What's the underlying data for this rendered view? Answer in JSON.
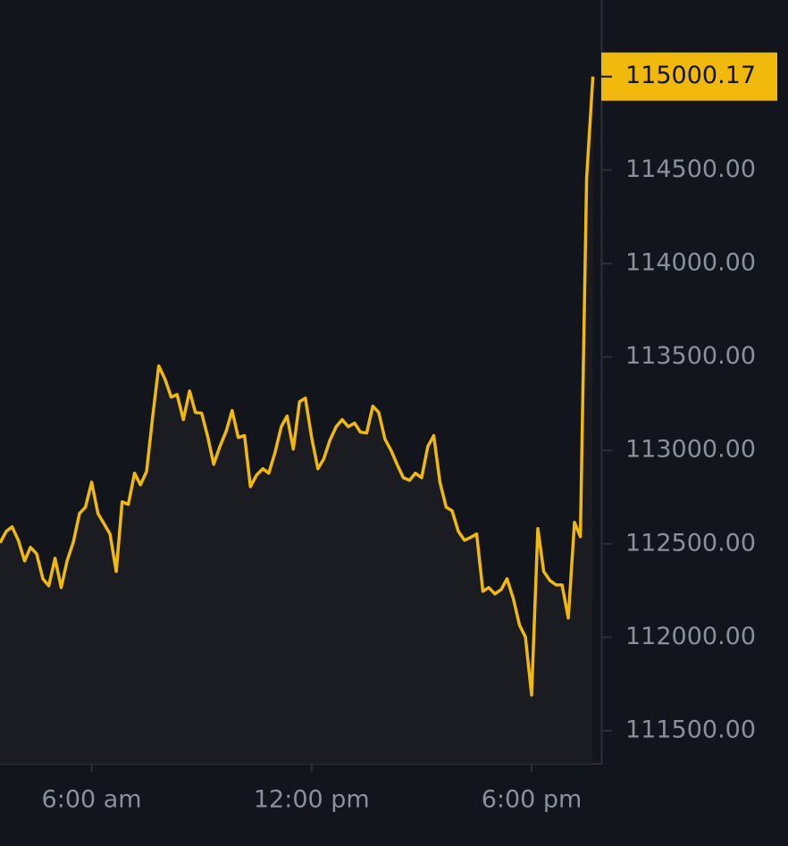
{
  "chart_data": {
    "type": "area",
    "x": [
      3.5,
      3.67,
      3.83,
      4,
      4.17,
      4.33,
      4.5,
      4.67,
      4.83,
      5,
      5.17,
      5.33,
      5.5,
      5.67,
      5.83,
      6,
      6.17,
      6.33,
      6.5,
      6.67,
      6.83,
      7,
      7.17,
      7.33,
      7.5,
      7.67,
      7.83,
      8,
      8.17,
      8.33,
      8.5,
      8.67,
      8.83,
      9,
      9.17,
      9.33,
      9.5,
      9.67,
      9.83,
      10,
      10.17,
      10.33,
      10.5,
      10.67,
      10.83,
      11,
      11.17,
      11.33,
      11.5,
      11.67,
      11.83,
      12,
      12.17,
      12.33,
      12.5,
      12.67,
      12.83,
      13,
      13.17,
      13.33,
      13.5,
      13.67,
      13.83,
      14,
      14.17,
      14.33,
      14.5,
      14.67,
      14.83,
      15,
      15.17,
      15.33,
      15.5,
      15.67,
      15.83,
      16,
      16.17,
      16.33,
      16.5,
      16.67,
      16.83,
      17,
      17.17,
      17.33,
      17.5,
      17.67,
      17.83,
      18,
      18.17,
      18.33,
      18.5,
      18.67,
      18.83,
      19,
      19.17,
      19.33,
      19.5,
      19.67
    ],
    "series": [
      {
        "color": "#f0b90b",
        "area_color": "#1b1c21",
        "values": [
          112505,
          112567,
          112591,
          112519,
          112409,
          112481,
          112447,
          112313,
          112275,
          112423,
          112266,
          112409,
          112510,
          112663,
          112696,
          112830,
          112663,
          112610,
          112553,
          112352,
          112725,
          112711,
          112878,
          112816,
          112888,
          113189,
          113452,
          113381,
          113285,
          113299,
          113165,
          113318,
          113203,
          113199,
          113069,
          112926,
          113022,
          113103,
          113213,
          113069,
          113079,
          112806,
          112869,
          112902,
          112878,
          112988,
          113127,
          113184,
          113007,
          113261,
          113280,
          113069,
          112902,
          112955,
          113055,
          113127,
          113165,
          113127,
          113146,
          113098,
          113093,
          113237,
          113203,
          113060,
          112998,
          112926,
          112854,
          112840,
          112878,
          112854,
          113022,
          113079,
          112830,
          112696,
          112677,
          112567,
          112519,
          112534,
          112553,
          112246,
          112266,
          112232,
          112256,
          112313,
          112208,
          112065,
          112002,
          111691,
          112581,
          112352,
          112304,
          112280,
          112280,
          112103,
          112615,
          112538,
          114457,
          115000.17
        ]
      }
    ],
    "current_label": "115000.17",
    "xlim": [
      3.5,
      19.9
    ],
    "ylim": [
      111323,
      115410
    ],
    "xticks": [
      {
        "value": 6,
        "label": "6:00 am"
      },
      {
        "value": 12,
        "label": "12:00 pm"
      },
      {
        "value": 18,
        "label": "6:00 pm"
      }
    ],
    "yticks": [
      {
        "value": 111500,
        "label": "111500.00"
      },
      {
        "value": 112000,
        "label": "112000.00"
      },
      {
        "value": 112500,
        "label": "112500.00"
      },
      {
        "value": 113000,
        "label": "113000.00"
      },
      {
        "value": 113500,
        "label": "113500.00"
      },
      {
        "value": 114000,
        "label": "114000.00"
      },
      {
        "value": 114500,
        "label": "114500.00"
      }
    ]
  }
}
